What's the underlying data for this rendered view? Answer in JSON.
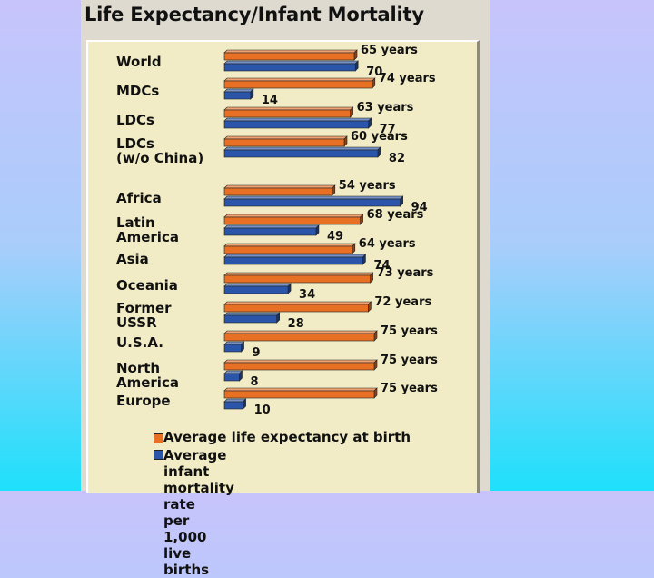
{
  "chart_data": {
    "type": "bar",
    "orientation": "horizontal",
    "title": "Life Expectancy/Infant Mortality",
    "categories": [
      "World",
      "MDCs",
      "LDCs",
      "LDCs\n(w/o China)",
      "Africa",
      "Latin\nAmerica",
      "Asia",
      "Oceania",
      "Former\nUSSR",
      "U.S.A.",
      "North\nAmerica",
      "Europe"
    ],
    "series": [
      {
        "name": "Average life expectancy at birth",
        "color": "#e87024",
        "values": [
          65,
          74,
          63,
          60,
          54,
          68,
          64,
          73,
          72,
          75,
          75,
          75
        ],
        "value_labels": [
          "65 years",
          "74 years",
          "63 years",
          "60 years",
          "54 years",
          "68 years",
          "64 years",
          "73 years",
          "72 years",
          "75 years",
          "75 years",
          "75 years"
        ]
      },
      {
        "name": "Average infant mortality rate\nper 1,000 live births",
        "color": "#2a55a8",
        "values": [
          70,
          14,
          77,
          82,
          94,
          49,
          74,
          34,
          28,
          9,
          8,
          10
        ],
        "value_labels": [
          "70",
          "14",
          "77",
          "82",
          "94",
          "49",
          "74",
          "34",
          "28",
          "9",
          "8",
          "10"
        ]
      }
    ],
    "legend": {
      "position": "bottom",
      "entries": [
        "Average life expectancy at birth",
        "Average infant mortality rate\nper 1,000 live births"
      ]
    },
    "axes": {
      "visible": false,
      "grid": false
    }
  }
}
